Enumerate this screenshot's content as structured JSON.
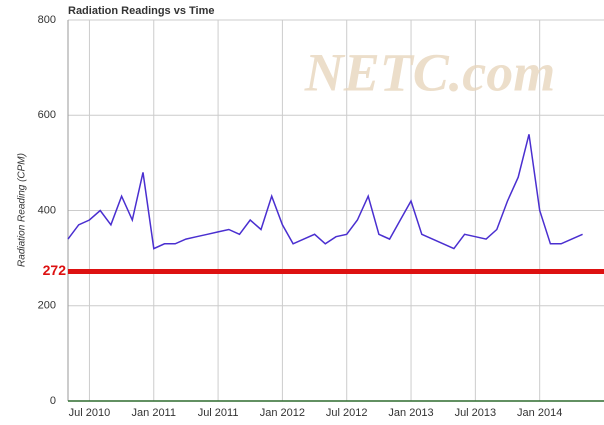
{
  "chart_data": {
    "type": "line",
    "title": "Radiation Readings vs Time",
    "y_label": "Radiation Reading (CPM)",
    "watermark": "NETC.com",
    "reference_line": {
      "value": 272,
      "color": "#dd1111"
    },
    "x": [
      "2010-05",
      "2010-06",
      "2010-07",
      "2010-08",
      "2010-09",
      "2010-10",
      "2010-11",
      "2010-12",
      "2011-01",
      "2011-02",
      "2011-03",
      "2011-04",
      "2011-05",
      "2011-06",
      "2011-07",
      "2011-08",
      "2011-09",
      "2011-10",
      "2011-11",
      "2011-12",
      "2012-01",
      "2012-02",
      "2012-03",
      "2012-04",
      "2012-05",
      "2012-06",
      "2012-07",
      "2012-08",
      "2012-09",
      "2012-10",
      "2012-11",
      "2012-12",
      "2013-01",
      "2013-02",
      "2013-03",
      "2013-04",
      "2013-05",
      "2013-06",
      "2013-07",
      "2013-08",
      "2013-09",
      "2013-10",
      "2013-11",
      "2013-12",
      "2014-01",
      "2014-02",
      "2014-03",
      "2014-04",
      "2014-05"
    ],
    "series": [
      {
        "name": "Radiation Reading",
        "color": "#4a2fd0",
        "values": [
          340,
          370,
          380,
          400,
          370,
          430,
          380,
          480,
          320,
          330,
          330,
          340,
          345,
          350,
          355,
          360,
          350,
          380,
          360,
          430,
          370,
          330,
          340,
          350,
          330,
          345,
          350,
          380,
          430,
          350,
          340,
          380,
          420,
          350,
          340,
          330,
          320,
          350,
          345,
          340,
          360,
          420,
          470,
          560,
          400,
          330,
          330,
          340,
          350
        ]
      }
    ],
    "xlim": [
      "2010-05",
      "2014-07"
    ],
    "xticks": [
      {
        "value": "2010-07",
        "label": "Jul 2010"
      },
      {
        "value": "2011-01",
        "label": "Jan 2011"
      },
      {
        "value": "2011-07",
        "label": "Jul 2011"
      },
      {
        "value": "2012-01",
        "label": "Jan 2012"
      },
      {
        "value": "2012-07",
        "label": "Jul 2012"
      },
      {
        "value": "2013-01",
        "label": "Jan 2013"
      },
      {
        "value": "2013-07",
        "label": "Jul 2013"
      },
      {
        "value": "2014-01",
        "label": "Jan 2014"
      }
    ],
    "ylim": [
      0,
      800
    ],
    "yticks": [
      0,
      200,
      400,
      600,
      800
    ],
    "grid": true
  }
}
